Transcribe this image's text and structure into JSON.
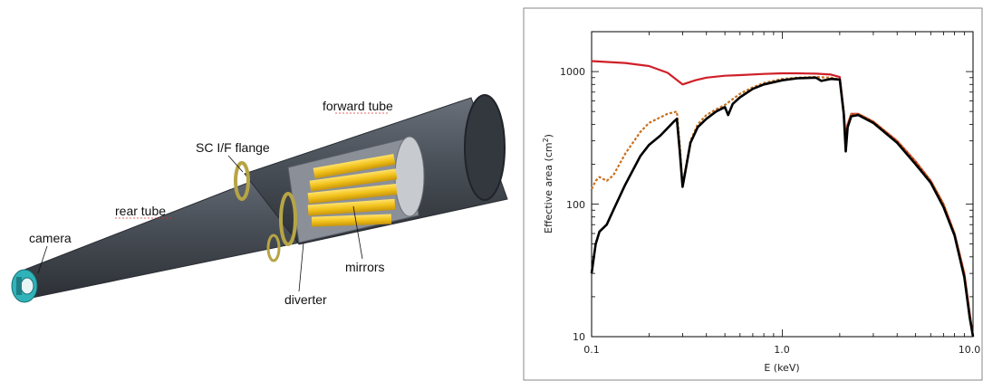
{
  "labels": {
    "forward_tube": "forward tube",
    "sc_flange": "SC I/F flange",
    "rear_tube": "rear tube",
    "camera": "camera",
    "mirrors": "mirrors",
    "diverter": "diverter"
  },
  "colors": {
    "tube_dark": "#3e434b",
    "tube_mid": "#555b64",
    "mirror_yellow": "#f2c21b",
    "camera_teal": "#2fb3b9",
    "red_series": "#d01f28",
    "dotted_series": "#c8701e",
    "black_series": "#000000"
  },
  "chart_data": {
    "type": "line",
    "xlabel": "E (keV)",
    "ylabel": "Effective area (cm",
    "ylabel_sup": "2",
    "ylabel_close": ")",
    "xscale": "log",
    "yscale": "log",
    "xlim": [
      0.1,
      10.0
    ],
    "ylim": [
      10,
      2000
    ],
    "xticks": [
      "0.1",
      "1.0",
      "10.0"
    ],
    "yticks": [
      "10",
      "100",
      "1000"
    ],
    "series": [
      {
        "color": "#d01f28",
        "style": "solid",
        "points": [
          [
            0.1,
            1200
          ],
          [
            0.15,
            1160
          ],
          [
            0.2,
            1100
          ],
          [
            0.25,
            980
          ],
          [
            0.3,
            800
          ],
          [
            0.35,
            860
          ],
          [
            0.4,
            900
          ],
          [
            0.5,
            930
          ],
          [
            0.6,
            940
          ],
          [
            0.8,
            960
          ],
          [
            1.0,
            970
          ],
          [
            1.2,
            970
          ],
          [
            1.5,
            965
          ],
          [
            1.8,
            950
          ],
          [
            2.0,
            910
          ],
          [
            2.1,
            500
          ],
          [
            2.15,
            320
          ],
          [
            2.2,
            400
          ],
          [
            2.3,
            480
          ],
          [
            2.5,
            480
          ],
          [
            3.0,
            420
          ],
          [
            4.0,
            300
          ],
          [
            5.0,
            210
          ],
          [
            6.0,
            150
          ],
          [
            7.0,
            100
          ],
          [
            8.0,
            60
          ],
          [
            9.0,
            30
          ],
          [
            9.6,
            15
          ],
          [
            10.0,
            10
          ]
        ]
      },
      {
        "color": "#c8701e",
        "style": "dotted",
        "points": [
          [
            0.1,
            130
          ],
          [
            0.105,
            150
          ],
          [
            0.11,
            160
          ],
          [
            0.12,
            150
          ],
          [
            0.13,
            165
          ],
          [
            0.15,
            240
          ],
          [
            0.18,
            350
          ],
          [
            0.2,
            410
          ],
          [
            0.25,
            480
          ],
          [
            0.28,
            500
          ],
          [
            0.29,
            280
          ],
          [
            0.3,
            140
          ],
          [
            0.31,
            180
          ],
          [
            0.33,
            300
          ],
          [
            0.36,
            400
          ],
          [
            0.4,
            470
          ],
          [
            0.45,
            520
          ],
          [
            0.5,
            560
          ],
          [
            0.55,
            620
          ],
          [
            0.6,
            680
          ],
          [
            0.7,
            760
          ],
          [
            0.8,
            820
          ],
          [
            1.0,
            880
          ],
          [
            1.2,
            900
          ],
          [
            1.5,
            910
          ],
          [
            1.8,
            900
          ],
          [
            2.0,
            870
          ],
          [
            2.1,
            500
          ],
          [
            2.15,
            260
          ],
          [
            2.2,
            400
          ],
          [
            2.3,
            480
          ],
          [
            2.5,
            480
          ],
          [
            3.0,
            420
          ],
          [
            4.0,
            300
          ],
          [
            5.0,
            210
          ],
          [
            6.0,
            150
          ],
          [
            7.0,
            100
          ],
          [
            8.0,
            60
          ],
          [
            9.0,
            30
          ],
          [
            9.6,
            15
          ],
          [
            10.0,
            10
          ]
        ]
      },
      {
        "color": "#000000",
        "style": "solid",
        "points": [
          [
            0.1,
            30
          ],
          [
            0.105,
            50
          ],
          [
            0.11,
            62
          ],
          [
            0.12,
            70
          ],
          [
            0.13,
            90
          ],
          [
            0.15,
            140
          ],
          [
            0.18,
            230
          ],
          [
            0.2,
            280
          ],
          [
            0.23,
            330
          ],
          [
            0.27,
            420
          ],
          [
            0.28,
            440
          ],
          [
            0.29,
            250
          ],
          [
            0.3,
            135
          ],
          [
            0.31,
            175
          ],
          [
            0.33,
            290
          ],
          [
            0.36,
            380
          ],
          [
            0.4,
            440
          ],
          [
            0.45,
            500
          ],
          [
            0.5,
            540
          ],
          [
            0.52,
            470
          ],
          [
            0.55,
            570
          ],
          [
            0.6,
            640
          ],
          [
            0.7,
            740
          ],
          [
            0.8,
            800
          ],
          [
            1.0,
            860
          ],
          [
            1.2,
            890
          ],
          [
            1.5,
            900
          ],
          [
            1.6,
            850
          ],
          [
            1.8,
            880
          ],
          [
            2.0,
            870
          ],
          [
            2.1,
            480
          ],
          [
            2.15,
            250
          ],
          [
            2.2,
            380
          ],
          [
            2.3,
            460
          ],
          [
            2.5,
            470
          ],
          [
            3.0,
            410
          ],
          [
            4.0,
            290
          ],
          [
            5.0,
            200
          ],
          [
            6.0,
            145
          ],
          [
            7.0,
            95
          ],
          [
            8.0,
            58
          ],
          [
            9.0,
            28
          ],
          [
            9.6,
            14
          ],
          [
            10.0,
            10
          ]
        ]
      }
    ]
  }
}
